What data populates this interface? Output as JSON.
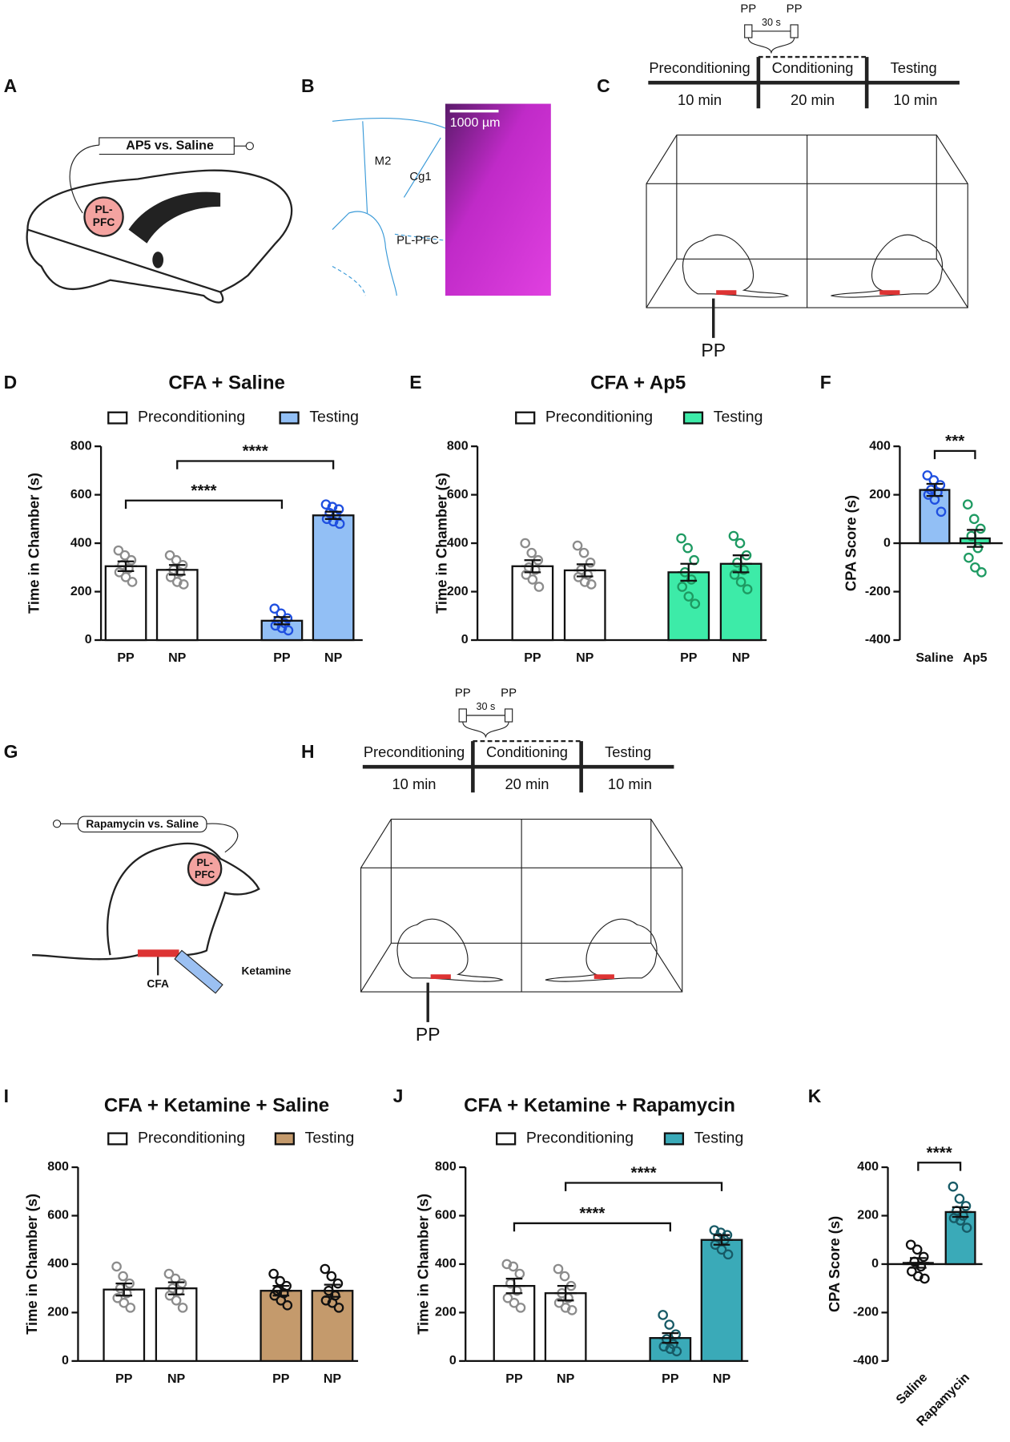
{
  "panels": [
    "A",
    "B",
    "C",
    "D",
    "E",
    "F",
    "G",
    "H",
    "I",
    "J",
    "K"
  ],
  "panel_a": {
    "cannula": "AP5 vs. Saline",
    "region": [
      "PL-",
      "PFC"
    ]
  },
  "panel_b": {
    "regions": [
      "M2",
      "Cg1",
      "PL-PFC"
    ],
    "scale_bar": "1000 µm"
  },
  "panel_c": {
    "stimulus": [
      "PP",
      "PP"
    ],
    "interval": "30 s",
    "stages": [
      "Preconditioning",
      "Conditioning",
      "Testing"
    ],
    "durations": [
      "10 min",
      "20 min",
      "10 min"
    ],
    "chamber_label": "PP"
  },
  "panel_g": {
    "cannula": "Rapamycin vs. Saline",
    "region": [
      "PL-",
      "PFC"
    ],
    "labels": [
      "CFA",
      "Ketamine"
    ]
  },
  "panel_h": {
    "stimulus": [
      "PP",
      "PP"
    ],
    "interval": "30 s",
    "stages": [
      "Preconditioning",
      "Conditioning",
      "Testing"
    ],
    "durations": [
      "10 min",
      "20 min",
      "10 min"
    ],
    "chamber_label": "PP"
  },
  "chart_data": [
    {
      "type": "bar",
      "title": "CFA + Saline",
      "ylabel": "Time in Chamber (s)",
      "categories": [
        "PP",
        "NP",
        "PP",
        "NP"
      ],
      "ylim": [
        0,
        800
      ],
      "yticks": [
        0,
        200,
        400,
        600,
        800
      ],
      "series": [
        {
          "name": "Preconditioning",
          "color": "#ffffff",
          "point_color": "#8c8c8c",
          "values": [
            305,
            290,
            null,
            null
          ],
          "errors": [
            20,
            20,
            null,
            null
          ],
          "points": [
            [
              370,
              350,
              330,
              310,
              295,
              280,
              260,
              240
            ],
            [
              350,
              330,
              310,
              290,
              280,
              260,
              240,
              230
            ],
            null,
            null
          ]
        },
        {
          "name": "Testing",
          "color": "#92bff5",
          "point_color": "#1f4fe0",
          "values": [
            null,
            null,
            80,
            515
          ],
          "errors": [
            null,
            null,
            15,
            15
          ],
          "points": [
            null,
            null,
            [
              130,
              110,
              90,
              80,
              70,
              60,
              50,
              40
            ],
            [
              560,
              550,
              540,
              525,
              515,
              500,
              490,
              480
            ]
          ]
        }
      ],
      "annotations": [
        {
          "text": "****",
          "from": 0,
          "to": 2
        },
        {
          "text": "****",
          "from": 1,
          "to": 3
        }
      ]
    },
    {
      "type": "bar",
      "title": "CFA + Ap5",
      "ylabel": "Time in Chamber (s)",
      "categories": [
        "PP",
        "NP",
        "PP",
        "NP"
      ],
      "ylim": [
        0,
        800
      ],
      "yticks": [
        0,
        200,
        400,
        600,
        800
      ],
      "series": [
        {
          "name": "Preconditioning",
          "color": "#ffffff",
          "point_color": "#8c8c8c",
          "values": [
            305,
            288,
            null,
            null
          ],
          "errors": [
            25,
            25,
            null,
            null
          ],
          "points": [
            [
              400,
              360,
              330,
              300,
              290,
              270,
              250,
              220
            ],
            [
              390,
              360,
              320,
              290,
              270,
              260,
              240,
              230
            ],
            null,
            null
          ]
        },
        {
          "name": "Testing",
          "color": "#3deba8",
          "point_color": "#1e9a62",
          "values": [
            null,
            null,
            280,
            315
          ],
          "errors": [
            null,
            null,
            35,
            35
          ],
          "points": [
            null,
            null,
            [
              420,
              380,
              330,
              280,
              250,
              220,
              180,
              150
            ],
            [
              430,
              400,
              350,
              320,
              290,
              270,
              240,
              210
            ]
          ]
        }
      ],
      "annotations": []
    },
    {
      "type": "bar",
      "ylabel": "CPA Score (s)",
      "categories": [
        "Saline",
        "Ap5"
      ],
      "ylim": [
        -400,
        400
      ],
      "yticks": [
        -400,
        -200,
        0,
        200,
        400
      ],
      "values": [
        220,
        20
      ],
      "colors": [
        "#92bff5",
        "#3deba8"
      ],
      "point_colors": [
        "#1f4fe0",
        "#1e9a62"
      ],
      "errors": [
        25,
        35
      ],
      "points": [
        [
          280,
          260,
          240,
          220,
          210,
          200,
          180,
          130
        ],
        [
          160,
          100,
          60,
          30,
          -20,
          -60,
          -100,
          -120
        ]
      ],
      "annotations": [
        {
          "text": "***",
          "from": 0,
          "to": 1
        }
      ]
    },
    {
      "type": "bar",
      "title": "CFA + Ketamine + Saline",
      "ylabel": "Time in Chamber (s)",
      "categories": [
        "PP",
        "NP",
        "PP",
        "NP"
      ],
      "ylim": [
        0,
        800
      ],
      "yticks": [
        0,
        200,
        400,
        600,
        800
      ],
      "series": [
        {
          "name": "Preconditioning",
          "color": "#ffffff",
          "point_color": "#8c8c8c",
          "values": [
            295,
            300,
            null,
            null
          ],
          "errors": [
            25,
            25,
            null,
            null
          ],
          "points": [
            [
              390,
              350,
              320,
              300,
              280,
              260,
              240,
              220
            ],
            [
              360,
              340,
              320,
              300,
              290,
              270,
              250,
              220
            ],
            null,
            null
          ]
        },
        {
          "name": "Testing",
          "color": "#c49a6c",
          "point_color": "#111111",
          "values": [
            null,
            null,
            290,
            290
          ],
          "errors": [
            null,
            null,
            20,
            25
          ],
          "points": [
            null,
            null,
            [
              360,
              330,
              310,
              290,
              280,
              270,
              250,
              230
            ],
            [
              380,
              350,
              320,
              290,
              270,
              250,
              240,
              220
            ]
          ]
        }
      ],
      "annotations": []
    },
    {
      "type": "bar",
      "title": "CFA + Ketamine + Rapamycin",
      "ylabel": "Time in Chamber (s)",
      "categories": [
        "PP",
        "NP",
        "PP",
        "NP"
      ],
      "ylim": [
        0,
        800
      ],
      "yticks": [
        0,
        200,
        400,
        600,
        800
      ],
      "series": [
        {
          "name": "Preconditioning",
          "color": "#ffffff",
          "point_color": "#8c8c8c",
          "values": [
            310,
            280,
            null,
            null
          ],
          "errors": [
            30,
            30,
            null,
            null
          ],
          "points": [
            [
              400,
              390,
              360,
              320,
              290,
              260,
              240,
              220
            ],
            [
              380,
              350,
              310,
              280,
              260,
              240,
              220,
              210
            ],
            null,
            null
          ]
        },
        {
          "name": "Testing",
          "color": "#3aaab8",
          "point_color": "#175a66",
          "values": [
            null,
            null,
            95,
            500
          ],
          "errors": [
            null,
            null,
            20,
            20
          ],
          "points": [
            null,
            null,
            [
              190,
              150,
              110,
              90,
              70,
              60,
              50,
              40
            ],
            [
              540,
              530,
              520,
              510,
              500,
              480,
              460,
              440
            ]
          ]
        }
      ],
      "annotations": [
        {
          "text": "****",
          "from": 0,
          "to": 2
        },
        {
          "text": "****",
          "from": 1,
          "to": 3
        }
      ]
    },
    {
      "type": "bar",
      "ylabel": "CPA Score (s)",
      "categories": [
        "Saline",
        "Rapamycin"
      ],
      "ylim": [
        -400,
        400
      ],
      "yticks": [
        -400,
        -200,
        0,
        200,
        400
      ],
      "values": [
        5,
        215
      ],
      "colors": [
        "#ffffff",
        "#3aaab8"
      ],
      "point_colors": [
        "#111111",
        "#175a66"
      ],
      "errors": [
        20,
        20
      ],
      "points": [
        [
          80,
          60,
          30,
          10,
          -10,
          -30,
          -50,
          -60
        ],
        [
          320,
          270,
          240,
          220,
          200,
          190,
          180,
          150
        ]
      ],
      "annotations": [
        {
          "text": "****",
          "from": 0,
          "to": 1
        }
      ]
    }
  ]
}
